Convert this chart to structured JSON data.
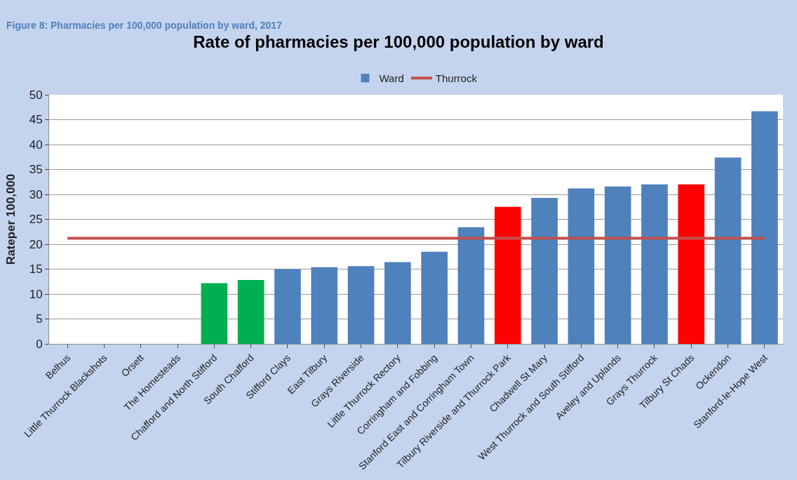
{
  "chart_data": {
    "type": "bar",
    "title": "Rate of pharmacies per 100,000 population by ward",
    "ylabel": "Rateper 100,000",
    "annotations": [
      "Figure 8: Pharmacies per 100,000 population by ward, 2017"
    ],
    "categories": [
      "Belhus",
      "Little Thurrock Blackshots",
      "Orsett",
      "The Homesteads",
      "Chafford and North Stifford",
      "South Chafford",
      "Stifford Clays",
      "East Tilbury",
      "Grays Riverside",
      "Little Thurrock Rectory",
      "Corringham and Fobbing",
      "Stanford East and Corringham Town",
      "Tilbury Riverside and Thurrock Park",
      "Chadwell St Mary",
      "West Thurrock and South Stifford",
      "Aveley and Uplands",
      "Grays Thurrock",
      "Tilbury St Chads",
      "Ockendon",
      "Stanford-le-Hope West"
    ],
    "series": [
      {
        "name": "Ward",
        "color": "#4f81bd",
        "values": [
          0,
          0,
          0,
          0,
          12.2,
          12.8,
          15.0,
          15.4,
          15.6,
          16.4,
          18.5,
          23.4,
          27.5,
          29.3,
          31.2,
          31.6,
          32.0,
          32.0,
          37.4,
          46.7
        ],
        "colors": [
          "#4f81bd",
          "#4f81bd",
          "#4f81bd",
          "#4f81bd",
          "#00b050",
          "#00b050",
          "#4f81bd",
          "#4f81bd",
          "#4f81bd",
          "#4f81bd",
          "#4f81bd",
          "#4f81bd",
          "#ff0000",
          "#4f81bd",
          "#4f81bd",
          "#4f81bd",
          "#4f81bd",
          "#ff0000",
          "#4f81bd",
          "#4f81bd"
        ]
      },
      {
        "name": "Thurrock",
        "type": "line",
        "color": "#c0504d",
        "values": [
          21.2,
          21.2,
          21.2,
          21.2,
          21.2,
          21.2,
          21.2,
          21.2,
          21.2,
          21.2,
          21.2,
          21.2,
          21.2,
          21.2,
          21.2,
          21.2,
          21.2,
          21.2,
          21.2,
          21.2
        ]
      }
    ],
    "ylim": [
      0,
      50
    ],
    "yticks": [
      0,
      5,
      10,
      15,
      20,
      25,
      30,
      35,
      40,
      45,
      50
    ],
    "grid": "y",
    "legend": "top",
    "marker": "none",
    "line_style": "solid"
  }
}
